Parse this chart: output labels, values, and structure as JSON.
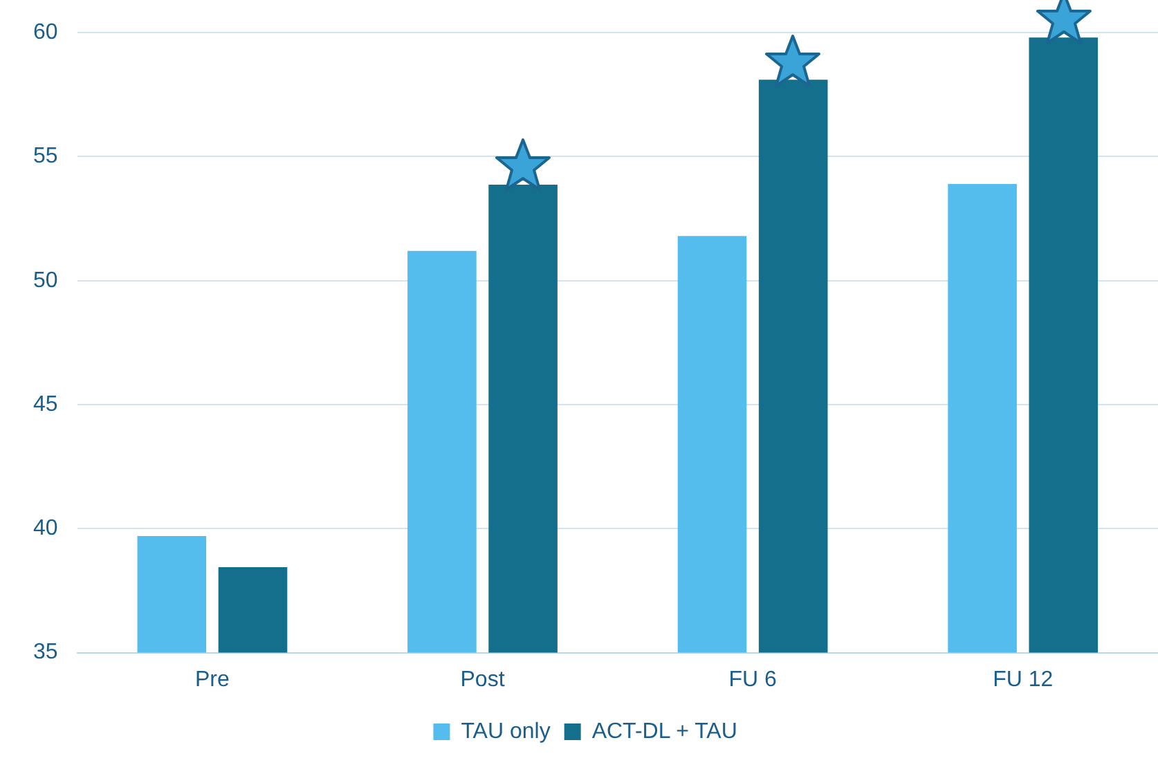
{
  "chart_data": {
    "type": "bar",
    "categories": [
      "Pre",
      "Post",
      "FU 6",
      "FU 12"
    ],
    "series": [
      {
        "name": "TAU only",
        "color": "#55bdee",
        "values": [
          39.7,
          51.2,
          51.8,
          53.9
        ]
      },
      {
        "name": "ACT-DL + TAU",
        "color": "#136f8c",
        "values": [
          38.45,
          53.87,
          58.1,
          59.8
        ]
      }
    ],
    "ylim": [
      35,
      60
    ],
    "yticks": [
      35,
      40,
      45,
      50,
      55,
      60
    ],
    "grid": "y",
    "legend": "bottom"
  }
}
